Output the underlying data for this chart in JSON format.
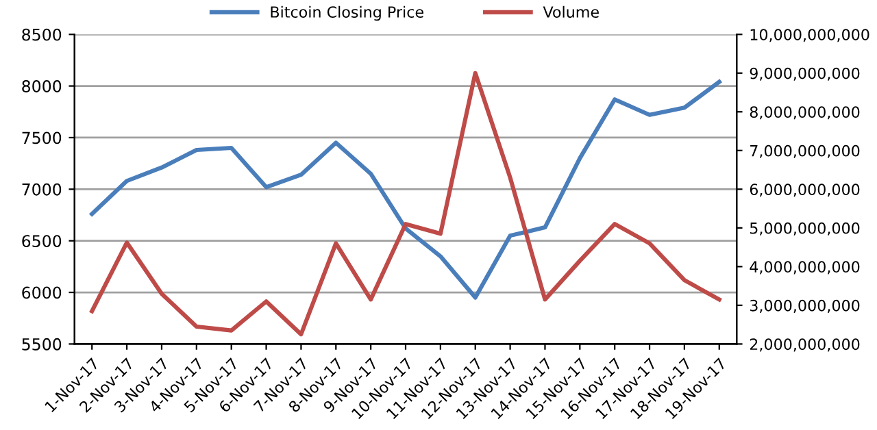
{
  "chart_data": {
    "type": "line",
    "categories": [
      "1-Nov-17",
      "2-Nov-17",
      "3-Nov-17",
      "4-Nov-17",
      "5-Nov-17",
      "6-Nov-17",
      "7-Nov-17",
      "8-Nov-17",
      "9-Nov-17",
      "10-Nov-17",
      "11-Nov-17",
      "12-Nov-17",
      "13-Nov-17",
      "14-Nov-17",
      "15-Nov-17",
      "16-Nov-17",
      "17-Nov-17",
      "18-Nov-17",
      "19-Nov-17"
    ],
    "series": [
      {
        "name": "Bitcoin Closing Price",
        "color": "#4a7ebb",
        "values": [
          6760,
          7080,
          7210,
          7380,
          7400,
          7020,
          7140,
          7450,
          7150,
          6620,
          6350,
          5950,
          6550,
          6630,
          7300,
          7870,
          7720,
          7790,
          8040
        ]
      },
      {
        "name": "Volume",
        "color": "#be4b48",
        "axis": "y2",
        "values": [
          2850000000,
          4620000000,
          3300000000,
          2450000000,
          2350000000,
          3100000000,
          2250000000,
          4600000000,
          3150000000,
          5100000000,
          4850000000,
          9000000000,
          6300000000,
          3150000000,
          4150000000,
          5100000000,
          4600000000,
          3650000000,
          3150000000
        ]
      }
    ],
    "ylim": [
      5500,
      8500
    ],
    "yticks": [
      5500,
      6000,
      6500,
      7000,
      7500,
      8000,
      8500
    ],
    "y2lim": [
      2000000000,
      10000000000
    ],
    "y2ticks": [
      {
        "value": 2000000000,
        "label": "2,000,000,000"
      },
      {
        "value": 3000000000,
        "label": "3,000,000,000"
      },
      {
        "value": 4000000000,
        "label": "4,000,000,000"
      },
      {
        "value": 5000000000,
        "label": "5,000,000,000"
      },
      {
        "value": 6000000000,
        "label": "6,000,000,000"
      },
      {
        "value": 7000000000,
        "label": "7,000,000,000"
      },
      {
        "value": 8000000000,
        "label": "8,000,000,000"
      },
      {
        "value": 9000000000,
        "label": "9,000,000,000"
      },
      {
        "value": 10000000000,
        "label": "10,000,000,000"
      }
    ],
    "grid": "y",
    "legend": "top",
    "marker": "none",
    "line_style": "solid"
  }
}
